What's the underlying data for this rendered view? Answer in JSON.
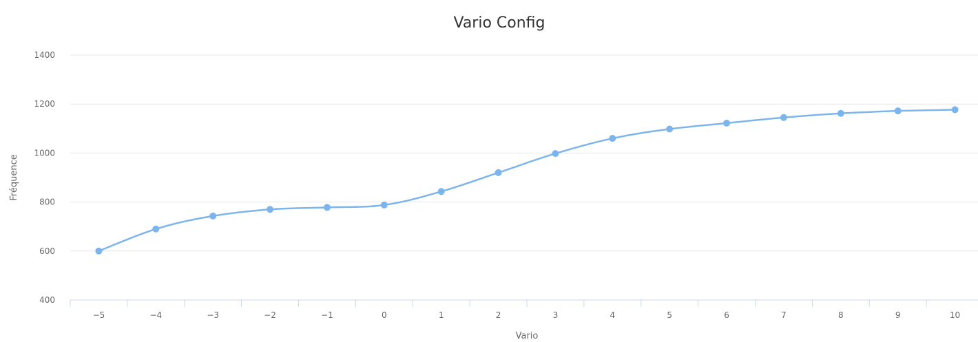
{
  "chart_data": {
    "type": "line",
    "title": "Vario Config",
    "xlabel": "Vario",
    "ylabel": "Fréquence",
    "categories": [
      "-5",
      "-4",
      "-3",
      "-2",
      "-1",
      "0",
      "1",
      "2",
      "3",
      "4",
      "5",
      "6",
      "7",
      "8",
      "9",
      "10"
    ],
    "x": [
      -5,
      -4,
      -3,
      -2,
      -1,
      0,
      1,
      2,
      3,
      4,
      5,
      6,
      7,
      8,
      9,
      10
    ],
    "ylim": [
      400,
      1400
    ],
    "yticks": [
      400,
      600,
      800,
      1000,
      1200,
      1400
    ],
    "grid": true,
    "series": [
      {
        "color": "#7cb5ec",
        "values": [
          600,
          690,
          743,
          770,
          778,
          788,
          843,
          920,
          998,
          1060,
          1098,
          1122,
          1145,
          1162,
          1172,
          1177
        ]
      }
    ]
  }
}
